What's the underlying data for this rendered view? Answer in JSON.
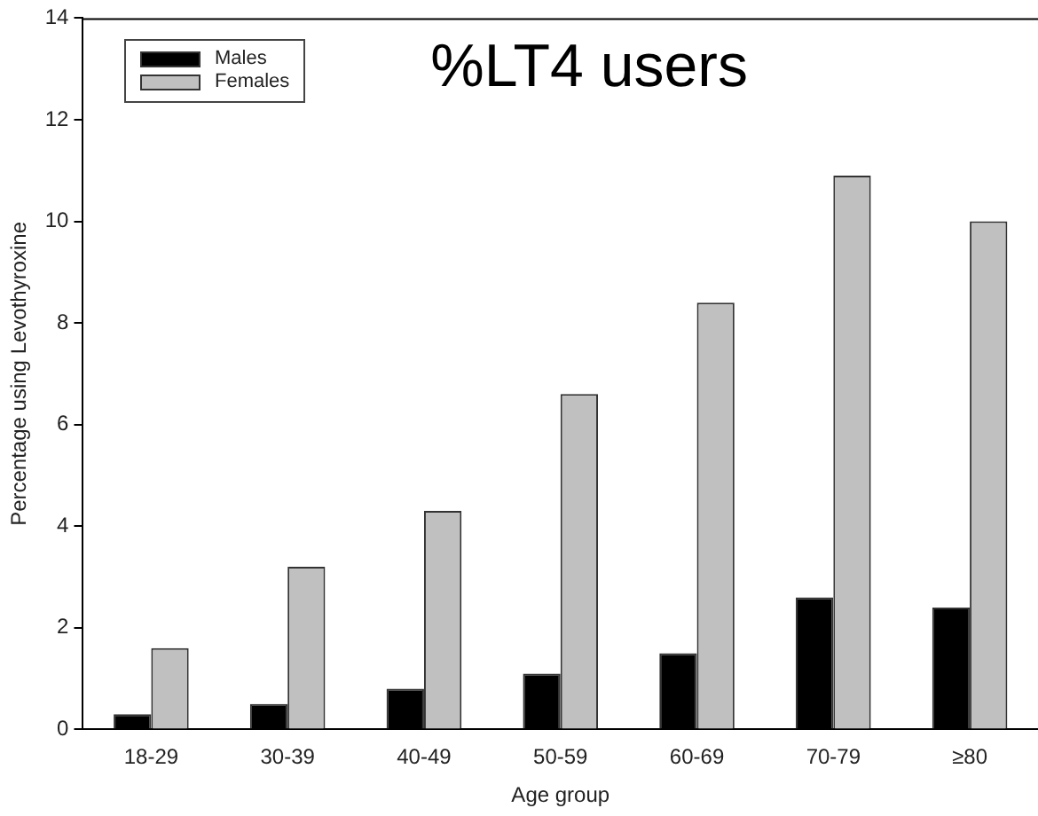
{
  "chart_data": {
    "type": "bar",
    "title": "%LT4 users",
    "xlabel": "Age group",
    "ylabel": "Percentage using Levothyroxine",
    "categories": [
      "18-29",
      "30-39",
      "40-49",
      "50-59",
      "60-69",
      "70-79",
      "≥80"
    ],
    "series": [
      {
        "name": "Males",
        "color": "#000000",
        "values": [
          0.3,
          0.5,
          0.8,
          1.1,
          1.5,
          2.6,
          2.4
        ]
      },
      {
        "name": "Females",
        "color": "#c0c0c0",
        "values": [
          1.6,
          3.2,
          4.3,
          6.6,
          8.4,
          10.9,
          10.0
        ]
      }
    ],
    "ylim": [
      0,
      14
    ],
    "yticks": [
      0,
      2,
      4,
      6,
      8,
      10,
      12,
      14
    ],
    "grid": false,
    "legend": "top left"
  }
}
